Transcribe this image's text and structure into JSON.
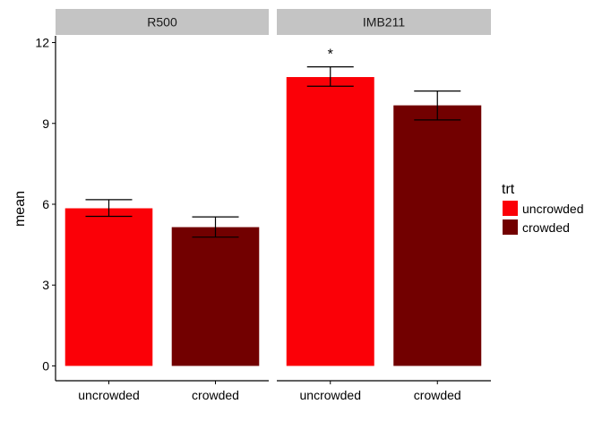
{
  "chart_data": {
    "type": "bar",
    "facet_label": "",
    "panels": [
      {
        "label": "R500",
        "categories": [
          "uncrowded",
          "crowded"
        ],
        "values": [
          5.85,
          5.15
        ],
        "error_low": [
          5.55,
          4.78
        ],
        "error_high": [
          6.17,
          5.53
        ],
        "annotations": [
          "",
          ""
        ]
      },
      {
        "label": "IMB211",
        "categories": [
          "uncrowded",
          "crowded"
        ],
        "values": [
          10.72,
          9.67
        ],
        "error_low": [
          10.38,
          9.13
        ],
        "error_high": [
          11.1,
          10.2
        ],
        "annotations": [
          "*",
          ""
        ]
      }
    ],
    "ylabel": "mean",
    "xlabel": "",
    "ylim": [
      -0.55,
      12.25
    ],
    "yticks": [
      0,
      3,
      6,
      9,
      12
    ],
    "legend": {
      "title": "trt",
      "position": "right",
      "entries": [
        {
          "label": "uncrowded",
          "color": "#fb0007"
        },
        {
          "label": "crowded",
          "color": "#720000"
        }
      ]
    },
    "colors": {
      "strip_background": "#c4c4c4",
      "error_bar": "#000000",
      "axis": "#000000"
    }
  }
}
